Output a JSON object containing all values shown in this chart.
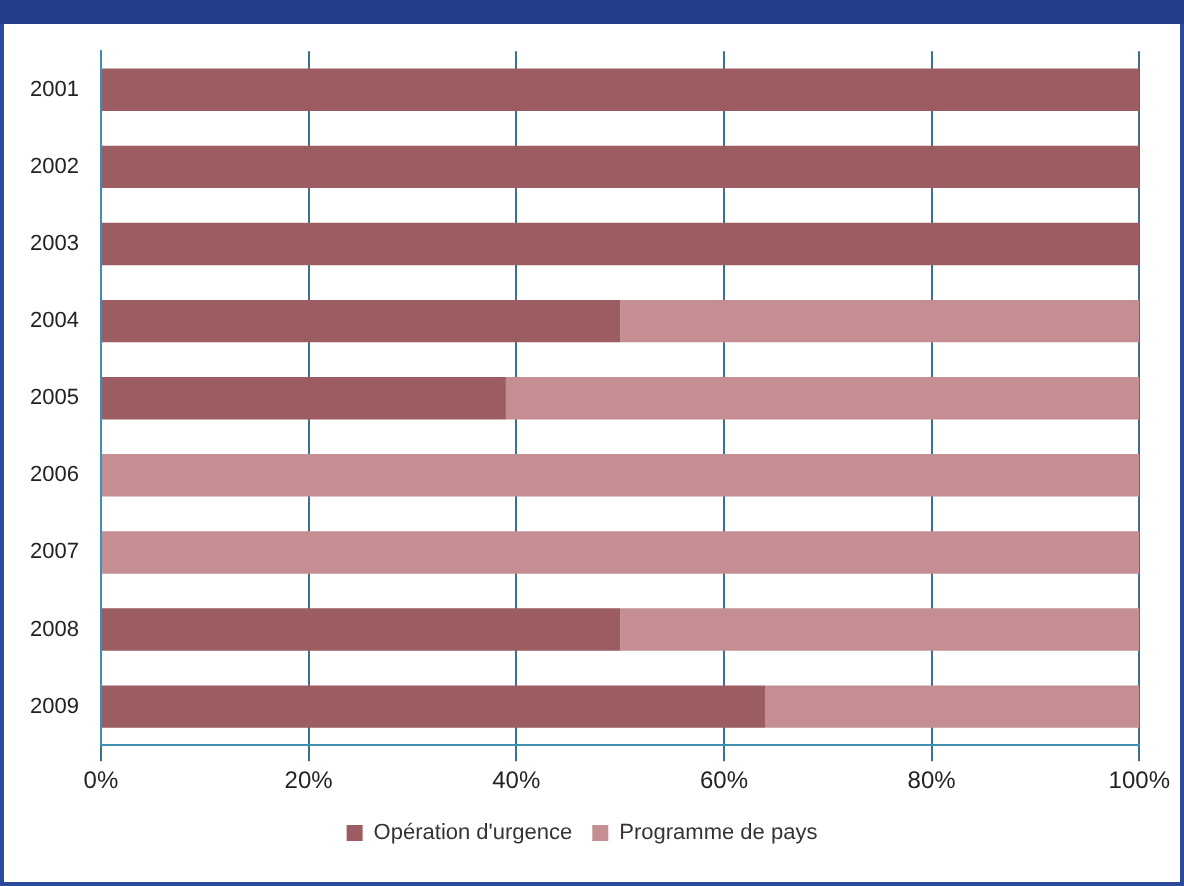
{
  "chart_data": {
    "type": "bar",
    "orientation": "horizontal",
    "stacked": true,
    "categories": [
      "2001",
      "2002",
      "2003",
      "2004",
      "2005",
      "2006",
      "2007",
      "2008",
      "2009"
    ],
    "series": [
      {
        "name": "Opération d'urgence",
        "color": "#9b5d61",
        "values": [
          100,
          100,
          100,
          50,
          39,
          0,
          0,
          50,
          64
        ]
      },
      {
        "name": "Programme de pays",
        "color": "#c58e92",
        "values": [
          0,
          0,
          0,
          50,
          61,
          100,
          100,
          50,
          36
        ]
      }
    ],
    "xlim": [
      0,
      100
    ],
    "xticks": [
      {
        "value": 0,
        "label": "0%"
      },
      {
        "value": 20,
        "label": "20%"
      },
      {
        "value": 40,
        "label": "40%"
      },
      {
        "value": 60,
        "label": "60%"
      },
      {
        "value": 80,
        "label": "80%"
      },
      {
        "value": 100,
        "label": "100%"
      }
    ],
    "grid": "x",
    "legend": "bottom"
  }
}
